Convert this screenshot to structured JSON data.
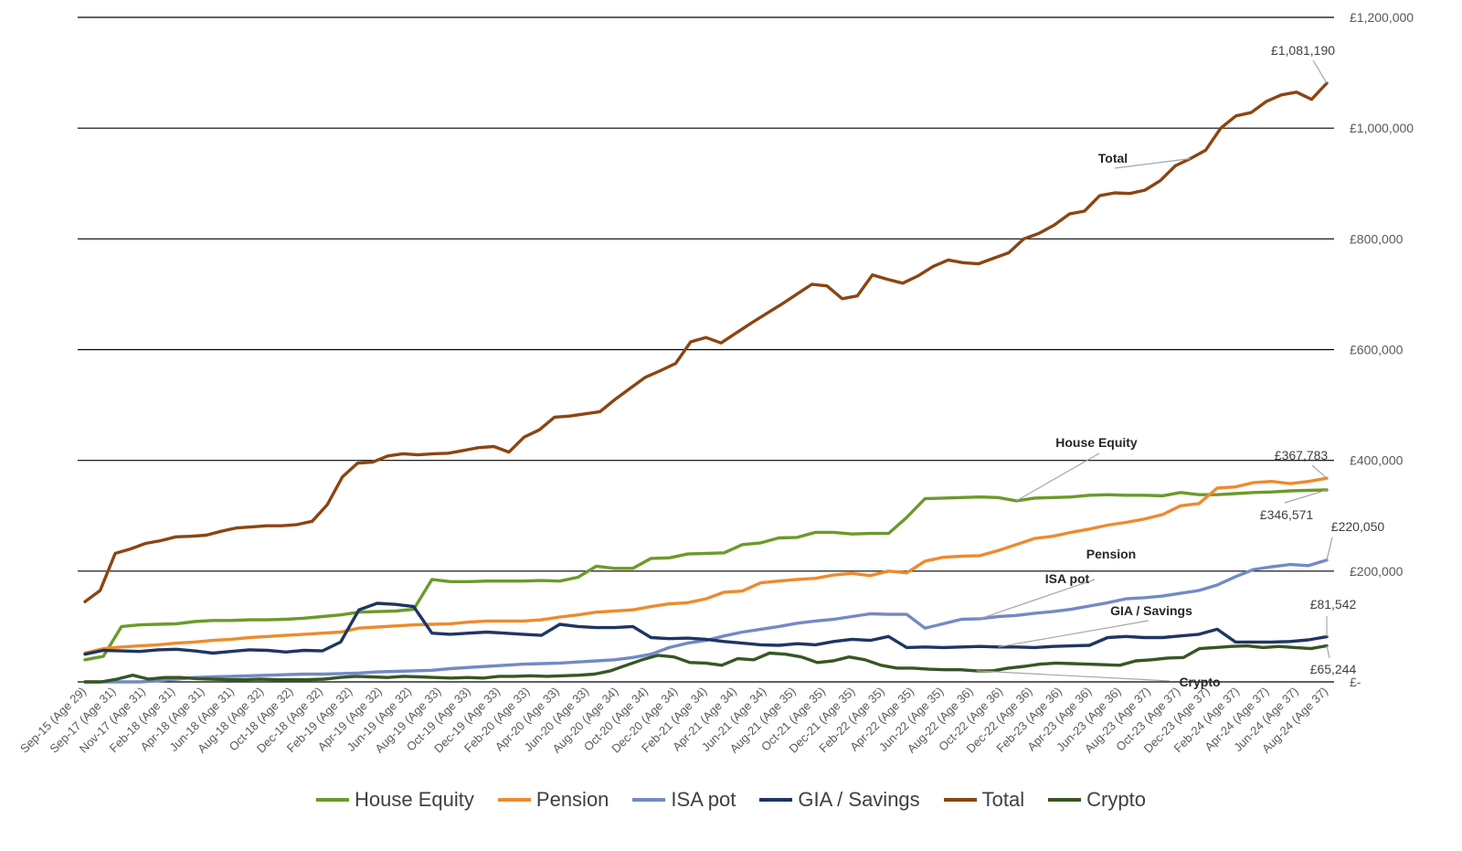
{
  "chart_data": {
    "type": "line",
    "title": "",
    "xlabel": "",
    "ylabel": "",
    "ylim": [
      0,
      1200000
    ],
    "yticks": [
      {
        "value": 0,
        "label": "£-"
      },
      {
        "value": 200000,
        "label": "£200,000"
      },
      {
        "value": 400000,
        "label": "£400,000"
      },
      {
        "value": 600000,
        "label": "£600,000"
      },
      {
        "value": 800000,
        "label": "£800,000"
      },
      {
        "value": 1000000,
        "label": "£1,000,000"
      },
      {
        "value": 1200000,
        "label": "£1,200,000"
      }
    ],
    "grid": true,
    "legend_position": "bottom",
    "x_tick_labels": [
      "Sep-15 (Age 29)",
      "Sep-17 (Age 31)",
      "Nov-17 (Age 31)",
      "Feb-18 (Age 31)",
      "Apr-18 (Age 31)",
      "Jun-18 (Age 31)",
      "Aug-18 (Age 32)",
      "Oct-18 (Age 32)",
      "Dec-18 (Age 32)",
      "Feb-19 (Age 32)",
      "Apr-19 (Age 32)",
      "Jun-19 (Age 32)",
      "Aug-19 (Age 33)",
      "Oct-19 (Age 33)",
      "Dec-19 (Age 33)",
      "Feb-20 (Age 33)",
      "Apr-20 (Age 33)",
      "Jun-20 (Age 33)",
      "Aug-20 (Age 34)",
      "Oct-20 (Age 34)",
      "Dec-20 (Age 34)",
      "Feb-21 (Age 34)",
      "Apr-21 (Age 34)",
      "Jun-21 (Age 34)",
      "Aug-21 (Age 35)",
      "Oct-21 (Age 35)",
      "Dec-21 (Age 35)",
      "Feb-22 (Age 35)",
      "Apr-22 (Age 35)",
      "Jun-22 (Age 35)",
      "Aug-22 (Age 36)",
      "Oct-22 (Age 36)",
      "Dec-22 (Age 36)",
      "Feb-23 (Age 36)",
      "Apr-23 (Age 36)",
      "Jun-23 (Age 36)",
      "Aug-23 (Age 37)",
      "Oct-23 (Age 37)",
      "Dec-23 (Age 37)",
      "Feb-24 (Age 37)",
      "Apr-24 (Age 37)",
      "Jun-24 (Age 37)",
      "Aug-24 (Age 37)"
    ],
    "series": [
      {
        "name": "House Equity",
        "color": "#6b9a2a",
        "label": "House Equity",
        "values": [
          40000,
          46000,
          100000,
          103000,
          104000,
          105000,
          109000,
          111000,
          111000,
          112000,
          112000,
          113000,
          115000,
          118000,
          121000,
          126000,
          127000,
          128000,
          131000,
          185000,
          181000,
          181000,
          182000,
          182000,
          182000,
          183000,
          182000,
          189000,
          209000,
          205000,
          205000,
          223000,
          224000,
          231000,
          232000,
          233000,
          248000,
          251000,
          260000,
          261000,
          270000,
          270000,
          267000,
          268000,
          268000,
          297000,
          331000,
          332000,
          333000,
          334000,
          333000,
          327000,
          332000,
          333000,
          334000,
          337000,
          338000,
          337000,
          337000,
          336000,
          342000,
          338000,
          338000,
          340000,
          342000,
          343000,
          345000,
          346000,
          346571
        ]
      },
      {
        "name": "Pension",
        "color": "#ed8b2d",
        "label": "Pension",
        "values": [
          52000,
          60000,
          63000,
          65000,
          67000,
          70000,
          72000,
          75000,
          77000,
          80000,
          82000,
          84000,
          86000,
          88000,
          90000,
          97000,
          99000,
          101000,
          103000,
          104000,
          105000,
          108000,
          110000,
          110000,
          110000,
          112000,
          117000,
          121000,
          126000,
          128000,
          130000,
          136000,
          141000,
          143000,
          150000,
          162000,
          164000,
          179000,
          182000,
          185000,
          187000,
          193000,
          196000,
          192000,
          200000,
          197000,
          218000,
          225000,
          227000,
          228000,
          237000,
          248000,
          259000,
          263000,
          270000,
          276000,
          283000,
          288000,
          294000,
          302000,
          318000,
          322000,
          350000,
          352000,
          360000,
          362000,
          358000,
          362000,
          367783
        ]
      },
      {
        "name": "ISA pot",
        "color": "#7389c6",
        "label": "ISA pot",
        "values": [
          0,
          0,
          0,
          0,
          2000,
          5000,
          8000,
          9000,
          10000,
          11000,
          12000,
          13000,
          14000,
          14000,
          15000,
          16000,
          18000,
          19000,
          20000,
          21000,
          24000,
          26000,
          28000,
          30000,
          32000,
          33000,
          34000,
          36000,
          38000,
          40000,
          44000,
          50000,
          62000,
          70000,
          75000,
          83000,
          90000,
          95000,
          100000,
          106000,
          110000,
          113000,
          118000,
          123000,
          122000,
          122000,
          97000,
          105000,
          113000,
          114000,
          118000,
          120000,
          124000,
          127000,
          131000,
          137000,
          143000,
          150000,
          152000,
          155000,
          160000,
          165000,
          175000,
          190000,
          203000,
          208000,
          212000,
          210000,
          220050
        ]
      },
      {
        "name": "GIA / Savings",
        "color": "#1f3564",
        "label": "GIA / Savings",
        "values": [
          50000,
          57000,
          56000,
          55000,
          58000,
          59000,
          56000,
          52000,
          55000,
          58000,
          57000,
          54000,
          57000,
          56000,
          72000,
          130000,
          142000,
          140000,
          136000,
          88000,
          86000,
          88000,
          90000,
          88000,
          86000,
          84000,
          104000,
          100000,
          98000,
          98000,
          100000,
          80000,
          78000,
          79000,
          77000,
          73000,
          70000,
          67000,
          66000,
          69000,
          67000,
          73000,
          77000,
          75000,
          82000,
          62000,
          63000,
          62000,
          63000,
          64000,
          63000,
          63000,
          62000,
          64000,
          65000,
          66000,
          80000,
          82000,
          80000,
          80000,
          83000,
          86000,
          95000,
          72000,
          72000,
          72000,
          73000,
          76000,
          81542
        ]
      },
      {
        "name": "Total",
        "color": "#8b4513",
        "label": "Total",
        "values": [
          145000,
          165000,
          232000,
          240000,
          250000,
          255000,
          262000,
          263000,
          265000,
          272000,
          278000,
          280000,
          282000,
          282000,
          284000,
          290000,
          320000,
          370000,
          395000,
          397000,
          408000,
          412000,
          410000,
          412000,
          413000,
          418000,
          423000,
          425000,
          415000,
          442000,
          455000,
          478000,
          480000,
          484000,
          488000,
          510000,
          530000,
          550000,
          562000,
          575000,
          614000,
          622000,
          612000,
          630000,
          648000,
          665000,
          682000,
          700000,
          718000,
          715000,
          692000,
          697000,
          735000,
          727000,
          720000,
          733000,
          750000,
          762000,
          757000,
          755000,
          765000,
          775000,
          800000,
          810000,
          825000,
          845000,
          850000,
          878000,
          883000,
          882000,
          888000,
          905000,
          932000,
          945000,
          960000,
          1000000,
          1022000,
          1028000,
          1048000,
          1060000,
          1065000,
          1052000,
          1081190
        ]
      },
      {
        "name": "Crypto",
        "color": "#375623",
        "label": "Crypto",
        "values": [
          0,
          0,
          5000,
          12000,
          5000,
          8000,
          8000,
          6000,
          5000,
          4000,
          4000,
          5000,
          4000,
          4000,
          4000,
          5000,
          8000,
          10000,
          9000,
          8000,
          10000,
          9000,
          8000,
          7000,
          8000,
          7000,
          10000,
          10000,
          11000,
          10000,
          11000,
          12000,
          14000,
          20000,
          30000,
          40000,
          48000,
          45000,
          35000,
          34000,
          30000,
          42000,
          40000,
          52000,
          50000,
          45000,
          35000,
          38000,
          45000,
          40000,
          30000,
          25000,
          25000,
          23000,
          22000,
          22000,
          20000,
          20000,
          25000,
          28000,
          32000,
          34000,
          33000,
          32000,
          31000,
          30000,
          38000,
          40000,
          43000,
          44000,
          60000,
          62000,
          64000,
          65000,
          62000,
          64000,
          62000,
          60000,
          65244
        ]
      }
    ],
    "annotations": [
      {
        "text": "£1,081,190",
        "series": "Total",
        "at": "end"
      },
      {
        "text": "£367,783",
        "series": "Pension",
        "at": "end"
      },
      {
        "text": "£346,571",
        "series": "House Equity",
        "at": "end"
      },
      {
        "text": "£220,050",
        "series": "ISA pot",
        "at": "end"
      },
      {
        "text": "£81,542",
        "series": "GIA / Savings",
        "at": "end"
      },
      {
        "text": "£65,244",
        "series": "Crypto",
        "at": "end"
      }
    ]
  },
  "legend": [
    {
      "name": "House Equity",
      "color": "#6b9a2a"
    },
    {
      "name": "Pension",
      "color": "#ed8b2d"
    },
    {
      "name": "ISA pot",
      "color": "#7389c6"
    },
    {
      "name": "GIA / Savings",
      "color": "#1f3564"
    },
    {
      "name": "Total",
      "color": "#8b4513"
    },
    {
      "name": "Crypto",
      "color": "#375623"
    }
  ]
}
